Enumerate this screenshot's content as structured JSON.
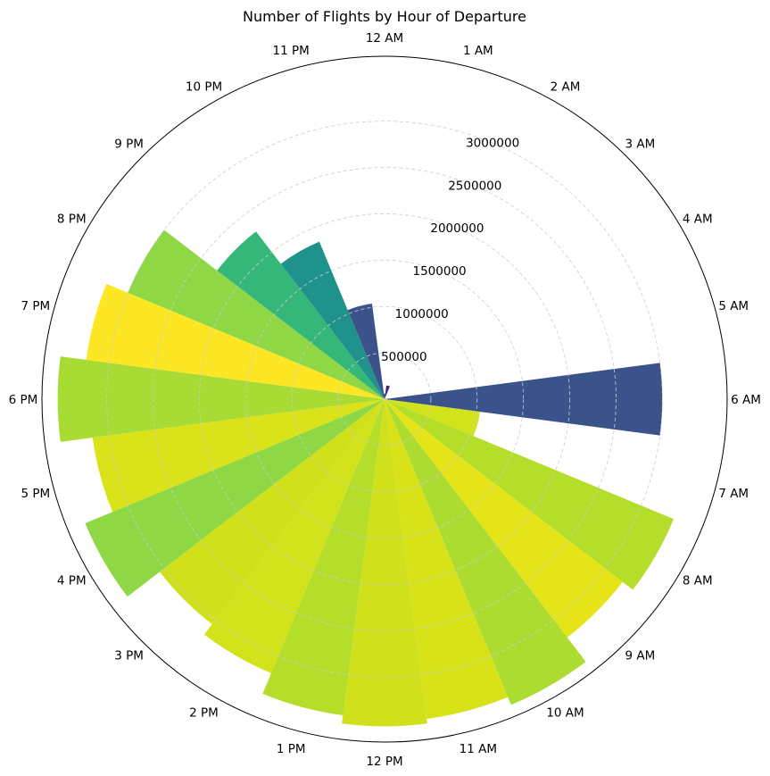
{
  "chart_data": {
    "type": "bar",
    "subtype": "polar",
    "title": "Number of Flights by Hour of Departure",
    "categories": [
      "12 AM",
      "1 AM",
      "2 AM",
      "3 AM",
      "4 AM",
      "5 AM",
      "6 AM",
      "7 AM",
      "8 AM",
      "9 AM",
      "10 AM",
      "11 AM",
      "12 PM",
      "1 PM",
      "2 PM",
      "3 PM",
      "4 PM",
      "5 PM",
      "6 PM",
      "7 PM",
      "8 PM",
      "9 PM",
      "10 PM",
      "11 PM"
    ],
    "values": [
      60000,
      150000,
      5000,
      3000,
      1000,
      1000,
      3000000,
      1040000,
      3380000,
      3240000,
      3570000,
      3480000,
      3530000,
      3440000,
      3200000,
      3060000,
      3500000,
      3180000,
      3530000,
      3250000,
      3000000,
      2280000,
      1840000,
      1040000
    ],
    "colors": [
      "#443a83",
      "#482071",
      "#440154",
      "#440154",
      "#440154",
      "#440154",
      "#3b528b",
      "#d2e21b",
      "#b5de2b",
      "#e5e419",
      "#addc30",
      "#d8e219",
      "#d0e11c",
      "#b5de2b",
      "#d2e21b",
      "#d0e11c",
      "#8fd744",
      "#dae319",
      "#a8db34",
      "#fde725",
      "#8fd744",
      "#35b779",
      "#20928c",
      "#3b528b"
    ],
    "theta_direction": "clockwise",
    "theta_zero": "top",
    "rlim": [
      0,
      3700000
    ],
    "rticks": [
      "500000",
      "1000000",
      "1500000",
      "2000000",
      "2500000",
      "3000000"
    ],
    "grid": true
  }
}
